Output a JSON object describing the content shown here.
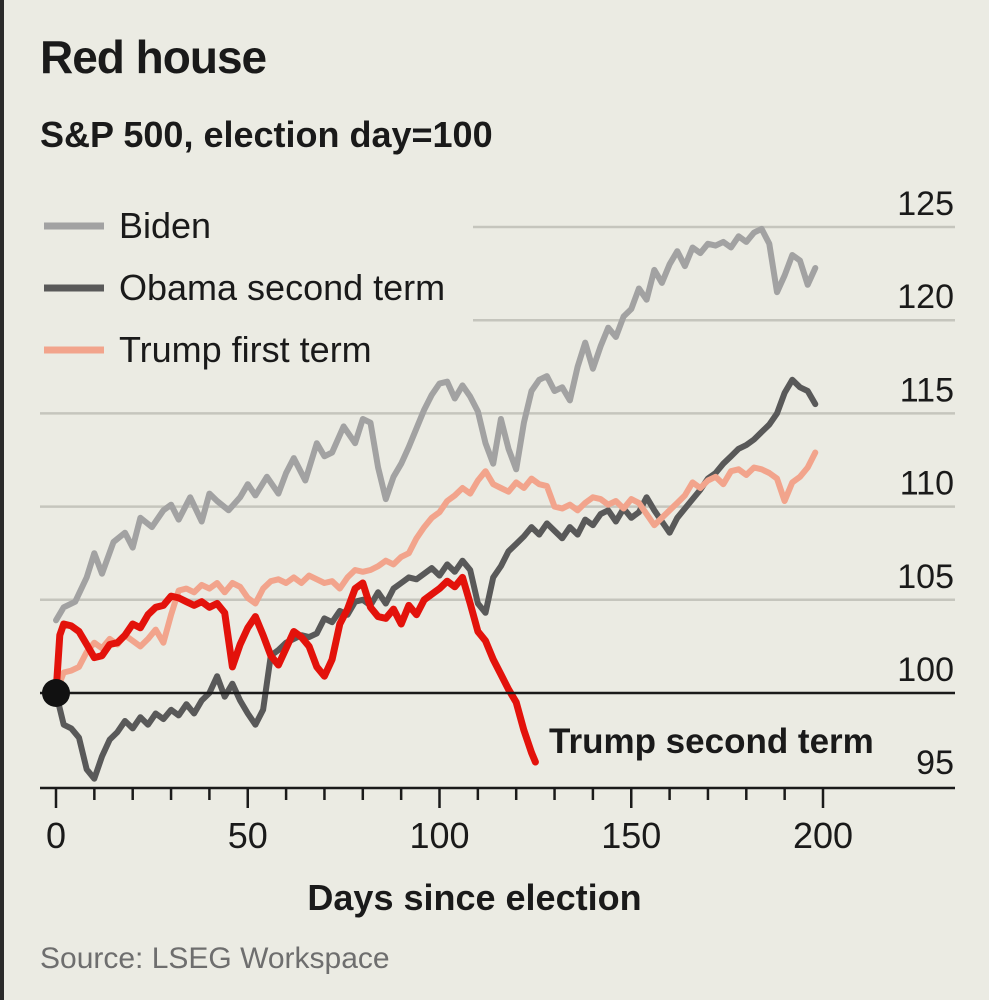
{
  "header": {
    "title": "Red house",
    "subtitle": "S&P 500, election day=100"
  },
  "footer": {
    "source": "Source: LSEG Workspace"
  },
  "colors": {
    "biden": "#a2a2a2",
    "obama": "#595959",
    "trump_first": "#f2a48c",
    "trump_second": "#e3120b",
    "gridline": "#c5c5bd",
    "baseline": "#1a1a1a"
  },
  "chart_data": {
    "type": "line",
    "title": "Red house",
    "subtitle": "S&P 500, election day=100",
    "xlabel": "Days since election",
    "ylabel": "",
    "xlim": [
      0,
      200
    ],
    "ylim": [
      95,
      125
    ],
    "x_ticks": [
      0,
      50,
      100,
      150,
      200
    ],
    "y_ticks": [
      95,
      100,
      105,
      110,
      115,
      120,
      125
    ],
    "grid": true,
    "legend_position": "top-left",
    "baseline": 100,
    "series": [
      {
        "name": "Biden",
        "x": [
          0,
          2,
          5,
          8,
          10,
          12,
          15,
          18,
          20,
          22,
          25,
          28,
          30,
          32,
          35,
          38,
          40,
          42,
          45,
          48,
          50,
          52,
          55,
          58,
          60,
          62,
          65,
          68,
          70,
          72,
          75,
          78,
          80,
          82,
          84,
          86,
          88,
          90,
          92,
          94,
          96,
          98,
          100,
          102,
          104,
          106,
          108,
          110,
          112,
          114,
          116,
          118,
          120,
          122,
          124,
          126,
          128,
          130,
          132,
          134,
          136,
          138,
          140,
          142,
          144,
          146,
          148,
          150,
          152,
          154,
          156,
          158,
          160,
          162,
          164,
          166,
          168,
          170,
          172,
          174,
          176,
          178,
          180,
          182,
          184,
          186,
          188,
          190,
          192,
          194,
          196,
          198
        ],
        "values": [
          103.9,
          104.6,
          104.9,
          106.2,
          107.5,
          106.4,
          108.1,
          108.6,
          107.8,
          109.4,
          108.9,
          109.8,
          110.1,
          109.3,
          110.5,
          109.2,
          110.7,
          110.3,
          109.8,
          110.5,
          111.2,
          110.6,
          111.6,
          110.7,
          111.8,
          112.6,
          111.4,
          113.4,
          112.7,
          112.9,
          114.3,
          113.4,
          114.7,
          114.5,
          112.1,
          110.4,
          111.6,
          112.3,
          113.2,
          114.2,
          115.2,
          116.0,
          116.6,
          116.7,
          115.8,
          116.5,
          115.9,
          115.1,
          113.4,
          112.3,
          114.7,
          113.1,
          112.0,
          114.5,
          116.2,
          116.8,
          117.0,
          116.2,
          116.4,
          115.7,
          117.5,
          118.8,
          117.4,
          118.6,
          119.6,
          119.1,
          120.2,
          120.6,
          121.7,
          121.1,
          122.7,
          122.0,
          123.0,
          123.7,
          122.9,
          123.9,
          123.6,
          124.1,
          124.0,
          124.2,
          123.9,
          124.5,
          124.2,
          124.7,
          124.9,
          124.1,
          121.5,
          122.4,
          123.5,
          123.2,
          121.9,
          122.8
        ]
      },
      {
        "name": "Obama second term",
        "x": [
          0,
          2,
          4,
          6,
          8,
          10,
          12,
          14,
          16,
          18,
          20,
          22,
          24,
          26,
          28,
          30,
          32,
          34,
          36,
          38,
          40,
          42,
          44,
          46,
          48,
          50,
          52,
          54,
          56,
          58,
          60,
          62,
          64,
          66,
          68,
          70,
          72,
          74,
          76,
          78,
          80,
          82,
          84,
          86,
          88,
          90,
          92,
          94,
          96,
          98,
          100,
          102,
          104,
          106,
          108,
          110,
          112,
          114,
          116,
          118,
          120,
          122,
          124,
          126,
          128,
          130,
          132,
          134,
          136,
          138,
          140,
          142,
          144,
          146,
          148,
          150,
          152,
          154,
          156,
          158,
          160,
          162,
          164,
          166,
          168,
          170,
          172,
          174,
          176,
          178,
          180,
          182,
          184,
          186,
          188,
          190,
          192,
          194,
          196,
          198
        ],
        "values": [
          100.0,
          98.3,
          98.1,
          97.6,
          95.9,
          95.4,
          96.6,
          97.5,
          97.9,
          98.5,
          98.1,
          98.7,
          98.3,
          98.9,
          98.6,
          99.1,
          98.8,
          99.4,
          98.9,
          99.6,
          100.0,
          100.9,
          99.8,
          100.5,
          99.6,
          98.9,
          98.3,
          99.1,
          102.0,
          102.3,
          102.7,
          102.9,
          103.1,
          103.0,
          103.2,
          104.0,
          103.8,
          104.4,
          104.2,
          104.9,
          105.0,
          104.7,
          105.4,
          104.8,
          105.6,
          105.9,
          106.2,
          106.1,
          106.4,
          106.7,
          106.3,
          106.9,
          106.5,
          107.1,
          106.6,
          104.8,
          104.3,
          106.2,
          106.8,
          107.6,
          108.0,
          108.4,
          108.9,
          108.5,
          109.1,
          108.7,
          108.3,
          108.9,
          108.5,
          109.3,
          109.0,
          109.6,
          109.8,
          109.2,
          109.9,
          109.4,
          109.7,
          110.5,
          109.8,
          109.2,
          108.6,
          109.4,
          109.9,
          110.4,
          110.9,
          111.5,
          111.8,
          112.3,
          112.7,
          113.1,
          113.3,
          113.6,
          114.0,
          114.4,
          115.0,
          116.1,
          116.8,
          116.4,
          116.2,
          115.5
        ]
      },
      {
        "name": "Trump first term",
        "x": [
          0,
          2,
          4,
          6,
          8,
          10,
          12,
          14,
          16,
          18,
          20,
          22,
          24,
          26,
          28,
          30,
          32,
          34,
          36,
          38,
          40,
          42,
          44,
          46,
          48,
          50,
          52,
          54,
          56,
          58,
          60,
          62,
          64,
          66,
          68,
          70,
          72,
          74,
          76,
          78,
          80,
          82,
          84,
          86,
          88,
          90,
          92,
          94,
          96,
          98,
          100,
          102,
          104,
          106,
          108,
          110,
          112,
          114,
          116,
          118,
          120,
          122,
          124,
          126,
          128,
          130,
          132,
          134,
          136,
          138,
          140,
          142,
          144,
          146,
          148,
          150,
          152,
          154,
          156,
          158,
          160,
          162,
          164,
          166,
          168,
          170,
          172,
          174,
          176,
          178,
          180,
          182,
          184,
          186,
          188,
          190,
          192,
          194,
          196,
          198
        ],
        "values": [
          100.0,
          101.1,
          101.2,
          101.4,
          102.2,
          102.7,
          102.4,
          102.9,
          102.6,
          103.1,
          102.8,
          102.5,
          102.9,
          103.4,
          102.7,
          104.2,
          105.5,
          105.6,
          105.4,
          105.8,
          105.6,
          105.9,
          105.4,
          105.9,
          105.7,
          105.1,
          104.8,
          105.6,
          106.0,
          106.1,
          105.9,
          106.2,
          105.9,
          106.3,
          106.1,
          105.9,
          106.0,
          105.6,
          106.2,
          106.6,
          106.5,
          106.6,
          106.8,
          107.1,
          106.9,
          107.3,
          107.5,
          108.3,
          108.9,
          109.4,
          109.7,
          110.3,
          110.6,
          111.0,
          110.7,
          111.4,
          111.9,
          111.2,
          111.0,
          110.8,
          111.3,
          111.0,
          111.5,
          111.2,
          111.1,
          110.0,
          109.9,
          110.1,
          109.8,
          110.2,
          110.5,
          110.4,
          110.1,
          110.3,
          109.9,
          110.4,
          110.2,
          109.6,
          109.0,
          109.4,
          109.8,
          110.2,
          110.6,
          111.3,
          111.0,
          111.4,
          111.6,
          111.2,
          111.9,
          112.0,
          111.7,
          112.1,
          112.0,
          111.8,
          111.5,
          110.3,
          111.3,
          111.6,
          112.1,
          112.9
        ]
      },
      {
        "name": "Trump second term",
        "x": [
          0,
          1,
          2,
          4,
          6,
          8,
          10,
          12,
          14,
          16,
          18,
          20,
          22,
          24,
          26,
          28,
          30,
          32,
          34,
          36,
          38,
          40,
          42,
          44,
          46,
          48,
          50,
          52,
          54,
          56,
          58,
          60,
          62,
          64,
          66,
          68,
          70,
          72,
          74,
          76,
          78,
          80,
          82,
          84,
          86,
          88,
          90,
          92,
          94,
          96,
          98,
          100,
          102,
          104,
          106,
          108,
          110,
          112,
          114,
          116,
          118,
          120,
          122,
          124,
          125
        ],
        "values": [
          100.0,
          103.1,
          103.7,
          103.6,
          103.3,
          102.6,
          101.9,
          102.0,
          102.6,
          102.7,
          103.1,
          103.7,
          103.5,
          104.2,
          104.6,
          104.7,
          105.2,
          105.1,
          104.9,
          104.7,
          104.9,
          104.6,
          104.8,
          104.3,
          101.4,
          102.6,
          103.5,
          104.1,
          103.1,
          102.0,
          101.5,
          102.4,
          103.3,
          103.0,
          102.5,
          101.4,
          100.9,
          101.8,
          103.7,
          104.5,
          105.6,
          105.9,
          104.6,
          104.1,
          104.0,
          104.5,
          103.7,
          104.7,
          104.2,
          105.0,
          105.3,
          105.6,
          106.0,
          105.7,
          106.2,
          104.8,
          103.3,
          102.8,
          101.8,
          101.0,
          100.2,
          99.5,
          98.0,
          96.8,
          96.3
        ]
      }
    ],
    "annotations": [
      {
        "text": "Trump second term",
        "series": "Trump second term"
      }
    ]
  }
}
